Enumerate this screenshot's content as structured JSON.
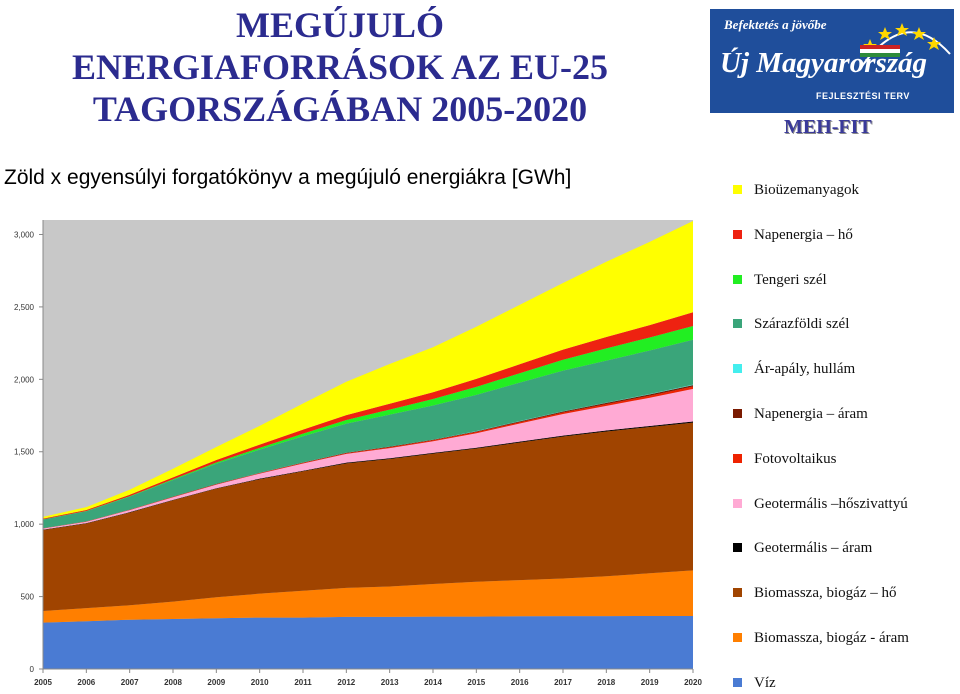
{
  "header": {
    "title_lines": [
      "MEGÚJULÓ",
      "ENERGIAFORRÁSOK AZ EU-25",
      "TAGORSZÁGÁBAN 2005-2020"
    ],
    "subtitle": "Zöld x egyensúlyi forgatókönyv a megújuló energiákra [GWh]"
  },
  "logo": {
    "tagline": "Befektetés a jövőbe",
    "name": "Új Magyarország",
    "sub": "FEJLESZTÉSI TERV",
    "caption": "MEH-FIT",
    "colors": {
      "background": "#1f4e9b",
      "text": "#ffffff",
      "star": "#ffd700"
    }
  },
  "chart_data": {
    "type": "area",
    "stacked": true,
    "x": [
      "2005",
      "2006",
      "2007",
      "2008",
      "2009",
      "2010",
      "2011",
      "2012",
      "2013",
      "2014",
      "2015",
      "2016",
      "2017",
      "2018",
      "2019",
      "2020"
    ],
    "y_ticks": [
      "0",
      "500",
      "1,000",
      "1,500",
      "2,000",
      "2,500",
      "3,000"
    ],
    "ylim": [
      0,
      3100
    ],
    "grid": false,
    "legend_position": "right",
    "background_color": "#c8c8c8",
    "series": [
      {
        "name": "Víz",
        "color": "#4a7bd3",
        "values": [
          320,
          330,
          340,
          345,
          350,
          355,
          355,
          360,
          360,
          362,
          362,
          364,
          365,
          365,
          366,
          366
        ]
      },
      {
        "name": "Biomassza, biogáz - áram",
        "color": "#ff7f00",
        "values": [
          80,
          90,
          100,
          120,
          145,
          165,
          185,
          200,
          210,
          225,
          240,
          250,
          260,
          275,
          295,
          315
        ]
      },
      {
        "name": "Biomassza, biogáz – hő",
        "color": "#a04400",
        "values": [
          560,
          585,
          640,
          700,
          750,
          790,
          825,
          860,
          880,
          900,
          920,
          950,
          980,
          1000,
          1010,
          1020
        ]
      },
      {
        "name": "Geotermális – áram",
        "color": "#000000",
        "values": [
          2,
          2,
          3,
          3,
          3,
          4,
          4,
          5,
          5,
          5,
          6,
          6,
          6,
          7,
          7,
          8
        ]
      },
      {
        "name": "Geotermális –hőszivattyú",
        "color": "#ffaad4",
        "values": [
          8,
          10,
          14,
          18,
          25,
          35,
          50,
          60,
          70,
          80,
          100,
          125,
          150,
          170,
          195,
          225
        ]
      },
      {
        "name": "Fotovoltaikus",
        "color": "#ee2200",
        "values": [
          1,
          1,
          2,
          2,
          3,
          3,
          4,
          5,
          6,
          7,
          8,
          9,
          10,
          12,
          14,
          16
        ]
      },
      {
        "name": "Napenergia – áram",
        "color": "#7a1a00",
        "values": [
          1,
          1,
          1,
          2,
          2,
          2,
          3,
          3,
          4,
          4,
          5,
          6,
          7,
          8,
          9,
          10
        ]
      },
      {
        "name": "Ár-apály, hullám",
        "color": "#44eeee",
        "values": [
          0,
          0,
          0,
          0,
          0,
          1,
          1,
          1,
          1,
          1,
          2,
          2,
          2,
          2,
          3,
          3
        ]
      },
      {
        "name": "Szárazföldi szél",
        "color": "#3aa57a",
        "values": [
          60,
          70,
          90,
          115,
          140,
          160,
          180,
          200,
          220,
          235,
          250,
          265,
          280,
          290,
          300,
          310
        ]
      },
      {
        "name": "Tengeri szél",
        "color": "#22ee22",
        "values": [
          1,
          2,
          3,
          5,
          8,
          12,
          18,
          25,
          35,
          45,
          55,
          65,
          75,
          85,
          90,
          95
        ]
      },
      {
        "name": "Napenergia – hő",
        "color": "#ee2211",
        "values": [
          5,
          7,
          10,
          13,
          17,
          22,
          28,
          34,
          40,
          47,
          55,
          62,
          70,
          78,
          85,
          95
        ]
      },
      {
        "name": "Bioüzemanyagok",
        "color": "#ffff00",
        "values": [
          12,
          20,
          35,
          60,
          90,
          130,
          180,
          230,
          275,
          310,
          360,
          410,
          460,
          520,
          575,
          630
        ]
      }
    ]
  }
}
